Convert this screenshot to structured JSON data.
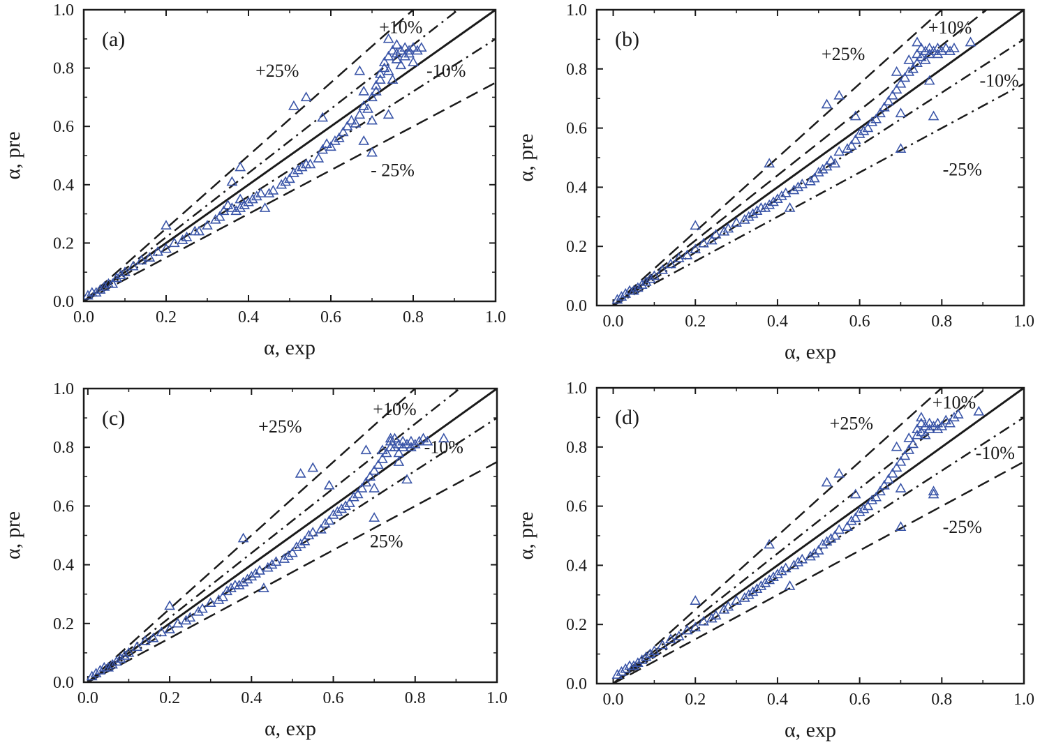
{
  "colors": {
    "axis": "#1a1a1a",
    "reference": "#1a1a1a",
    "marker": "#3a55a8",
    "background": "#ffffff"
  },
  "chart_data": [
    {
      "type": "scatter",
      "panel_label": "(a)",
      "xlabel": "α, exp",
      "ylabel": "α, pre",
      "xlim": [
        0,
        1
      ],
      "ylim": [
        0,
        1
      ],
      "xticks": [
        "0.0",
        "0.2",
        "0.4",
        "0.6",
        "0.8",
        "1.0"
      ],
      "yticks": [
        "0.0",
        "0.2",
        "0.4",
        "0.6",
        "0.8",
        "1.0"
      ],
      "marker": "triangle",
      "reference_lines": [
        {
          "label": "",
          "slope": 1.0,
          "style": "solid"
        },
        {
          "label": "+10%",
          "slope": 1.1,
          "style": "dashdot"
        },
        {
          "label": "-10%",
          "slope": 0.9,
          "style": "dashdot"
        },
        {
          "label": "+25%",
          "slope": 1.25,
          "style": "dashed"
        },
        {
          "label": "-  25%",
          "slope": 0.75,
          "style": "dashed"
        }
      ],
      "x": [
        0.01,
        0.02,
        0.03,
        0.04,
        0.05,
        0.06,
        0.07,
        0.08,
        0.09,
        0.1,
        0.12,
        0.14,
        0.16,
        0.18,
        0.2,
        0.22,
        0.24,
        0.25,
        0.27,
        0.28,
        0.3,
        0.32,
        0.33,
        0.34,
        0.35,
        0.36,
        0.37,
        0.38,
        0.38,
        0.39,
        0.4,
        0.41,
        0.42,
        0.43,
        0.44,
        0.45,
        0.46,
        0.48,
        0.49,
        0.5,
        0.51,
        0.52,
        0.53,
        0.54,
        0.55,
        0.57,
        0.58,
        0.59,
        0.6,
        0.61,
        0.62,
        0.63,
        0.64,
        0.65,
        0.66,
        0.67,
        0.68,
        0.68,
        0.69,
        0.7,
        0.7,
        0.71,
        0.71,
        0.72,
        0.72,
        0.73,
        0.73,
        0.74,
        0.74,
        0.75,
        0.75,
        0.76,
        0.76,
        0.77,
        0.77,
        0.78,
        0.78,
        0.79,
        0.79,
        0.8,
        0.8,
        0.81,
        0.82,
        0.2,
        0.38,
        0.51,
        0.54,
        0.58,
        0.67,
        0.74,
        0.76,
        0.36,
        0.7,
        0.68,
        0.74
      ],
      "y": [
        0.02,
        0.03,
        0.03,
        0.04,
        0.05,
        0.06,
        0.06,
        0.08,
        0.09,
        0.1,
        0.12,
        0.14,
        0.15,
        0.17,
        0.18,
        0.2,
        0.21,
        0.22,
        0.24,
        0.24,
        0.26,
        0.28,
        0.29,
        0.31,
        0.33,
        0.32,
        0.31,
        0.32,
        0.35,
        0.33,
        0.34,
        0.35,
        0.36,
        0.37,
        0.32,
        0.37,
        0.38,
        0.4,
        0.41,
        0.42,
        0.44,
        0.45,
        0.46,
        0.47,
        0.47,
        0.49,
        0.52,
        0.54,
        0.53,
        0.55,
        0.56,
        0.58,
        0.6,
        0.62,
        0.61,
        0.64,
        0.67,
        0.72,
        0.66,
        0.62,
        0.7,
        0.72,
        0.74,
        0.76,
        0.78,
        0.8,
        0.82,
        0.79,
        0.84,
        0.76,
        0.86,
        0.83,
        0.85,
        0.86,
        0.81,
        0.87,
        0.84,
        0.86,
        0.85,
        0.87,
        0.82,
        0.86,
        0.87,
        0.26,
        0.46,
        0.67,
        0.7,
        0.63,
        0.79,
        0.9,
        0.88,
        0.41,
        0.51,
        0.55,
        0.64
      ]
    },
    {
      "type": "scatter",
      "panel_label": "(b)",
      "xlabel": "α, exp",
      "ylabel": "α, pre",
      "xlim": [
        -0.04,
        1
      ],
      "ylim": [
        0,
        1
      ],
      "xticks": [
        "0.0",
        "0.2",
        "0.4",
        "0.6",
        "0.8",
        "1.0"
      ],
      "yticks": [
        "0.0",
        "0.2",
        "0.4",
        "0.6",
        "0.8",
        "1.0"
      ],
      "marker": "triangle",
      "reference_lines": [
        {
          "label": "",
          "slope": 1.0,
          "style": "solid"
        },
        {
          "label": "+10%",
          "slope": 1.1,
          "style": "dashed"
        },
        {
          "label": "-10%",
          "slope": 0.9,
          "style": "dashdot"
        },
        {
          "label": "+25%",
          "slope": 1.25,
          "style": "dashed"
        },
        {
          "label": "-25%",
          "slope": 0.75,
          "style": "dashdot"
        }
      ],
      "x": [
        0.01,
        0.02,
        0.03,
        0.04,
        0.05,
        0.06,
        0.07,
        0.08,
        0.09,
        0.1,
        0.12,
        0.14,
        0.16,
        0.18,
        0.2,
        0.22,
        0.24,
        0.25,
        0.27,
        0.28,
        0.3,
        0.32,
        0.33,
        0.34,
        0.35,
        0.36,
        0.37,
        0.38,
        0.39,
        0.4,
        0.41,
        0.42,
        0.43,
        0.44,
        0.45,
        0.46,
        0.48,
        0.49,
        0.5,
        0.51,
        0.52,
        0.53,
        0.54,
        0.55,
        0.57,
        0.58,
        0.59,
        0.6,
        0.61,
        0.62,
        0.63,
        0.64,
        0.65,
        0.66,
        0.67,
        0.68,
        0.69,
        0.7,
        0.71,
        0.72,
        0.72,
        0.73,
        0.74,
        0.74,
        0.75,
        0.75,
        0.76,
        0.76,
        0.77,
        0.77,
        0.78,
        0.79,
        0.79,
        0.8,
        0.81,
        0.82,
        0.83,
        0.87,
        0.2,
        0.38,
        0.52,
        0.55,
        0.59,
        0.69,
        0.74,
        0.77,
        0.7,
        0.7,
        0.78
      ],
      "y": [
        0.02,
        0.03,
        0.04,
        0.05,
        0.05,
        0.06,
        0.07,
        0.08,
        0.09,
        0.1,
        0.12,
        0.14,
        0.16,
        0.17,
        0.19,
        0.21,
        0.22,
        0.24,
        0.25,
        0.26,
        0.28,
        0.29,
        0.3,
        0.31,
        0.32,
        0.33,
        0.33,
        0.34,
        0.35,
        0.36,
        0.37,
        0.38,
        0.33,
        0.39,
        0.4,
        0.41,
        0.42,
        0.43,
        0.45,
        0.46,
        0.47,
        0.49,
        0.48,
        0.52,
        0.53,
        0.54,
        0.56,
        0.58,
        0.59,
        0.6,
        0.62,
        0.63,
        0.65,
        0.67,
        0.69,
        0.71,
        0.73,
        0.75,
        0.77,
        0.79,
        0.83,
        0.8,
        0.82,
        0.85,
        0.84,
        0.87,
        0.83,
        0.86,
        0.85,
        0.87,
        0.86,
        0.85,
        0.87,
        0.86,
        0.87,
        0.86,
        0.87,
        0.89,
        0.27,
        0.48,
        0.68,
        0.71,
        0.64,
        0.79,
        0.89,
        0.76,
        0.53,
        0.65,
        0.64
      ]
    },
    {
      "type": "scatter",
      "panel_label": "(c)",
      "xlabel": "α, exp",
      "ylabel": "α, pre",
      "xlim": [
        -0.01,
        1
      ],
      "ylim": [
        0,
        1
      ],
      "xticks": [
        "0.0",
        "0.2",
        "0.4",
        "0.6",
        "0.8",
        "1.0"
      ],
      "yticks": [
        "0.0",
        "0.2",
        "0.4",
        "0.6",
        "0.8",
        "1.0"
      ],
      "marker": "triangle",
      "reference_lines": [
        {
          "label": "",
          "slope": 1.0,
          "style": "solid"
        },
        {
          "label": "+10%",
          "slope": 1.1,
          "style": "dashdot"
        },
        {
          "label": "-10%",
          "slope": 0.9,
          "style": "dashdot"
        },
        {
          "label": "+25%",
          "slope": 1.25,
          "style": "dashed"
        },
        {
          "label": "25%",
          "slope": 0.75,
          "style": "dashed"
        }
      ],
      "x": [
        0.01,
        0.02,
        0.03,
        0.04,
        0.05,
        0.06,
        0.07,
        0.08,
        0.09,
        0.1,
        0.12,
        0.14,
        0.16,
        0.18,
        0.2,
        0.22,
        0.24,
        0.25,
        0.27,
        0.28,
        0.3,
        0.32,
        0.33,
        0.34,
        0.35,
        0.36,
        0.37,
        0.38,
        0.39,
        0.4,
        0.41,
        0.42,
        0.43,
        0.44,
        0.45,
        0.46,
        0.48,
        0.49,
        0.5,
        0.51,
        0.52,
        0.53,
        0.54,
        0.55,
        0.57,
        0.58,
        0.59,
        0.6,
        0.61,
        0.62,
        0.63,
        0.64,
        0.65,
        0.66,
        0.67,
        0.68,
        0.69,
        0.7,
        0.71,
        0.72,
        0.72,
        0.73,
        0.74,
        0.74,
        0.75,
        0.75,
        0.76,
        0.76,
        0.77,
        0.77,
        0.78,
        0.79,
        0.79,
        0.8,
        0.81,
        0.82,
        0.83,
        0.87,
        0.2,
        0.38,
        0.52,
        0.55,
        0.59,
        0.68,
        0.74,
        0.76,
        0.7,
        0.7,
        0.78
      ],
      "y": [
        0.02,
        0.03,
        0.04,
        0.05,
        0.05,
        0.06,
        0.07,
        0.08,
        0.09,
        0.1,
        0.12,
        0.14,
        0.15,
        0.17,
        0.18,
        0.2,
        0.21,
        0.22,
        0.24,
        0.25,
        0.27,
        0.28,
        0.29,
        0.31,
        0.32,
        0.33,
        0.33,
        0.34,
        0.35,
        0.36,
        0.37,
        0.38,
        0.32,
        0.39,
        0.4,
        0.41,
        0.42,
        0.43,
        0.44,
        0.46,
        0.47,
        0.48,
        0.5,
        0.51,
        0.52,
        0.54,
        0.55,
        0.57,
        0.58,
        0.59,
        0.6,
        0.61,
        0.63,
        0.64,
        0.66,
        0.68,
        0.7,
        0.72,
        0.74,
        0.76,
        0.79,
        0.78,
        0.8,
        0.82,
        0.8,
        0.83,
        0.78,
        0.81,
        0.8,
        0.82,
        0.81,
        0.8,
        0.82,
        0.81,
        0.82,
        0.83,
        0.82,
        0.83,
        0.26,
        0.49,
        0.71,
        0.73,
        0.67,
        0.79,
        0.83,
        0.75,
        0.56,
        0.66,
        0.69
      ]
    },
    {
      "type": "scatter",
      "panel_label": "(d)",
      "xlabel": "α, exp",
      "ylabel": "α, pre",
      "xlim": [
        -0.04,
        1
      ],
      "ylim": [
        0,
        1
      ],
      "xticks": [
        "0.0",
        "0.2",
        "0.4",
        "0.6",
        "0.8",
        "1.0"
      ],
      "yticks": [
        "0.0",
        "0.2",
        "0.4",
        "0.6",
        "0.8",
        "1.0"
      ],
      "marker": "triangle",
      "reference_lines": [
        {
          "label": "",
          "slope": 1.0,
          "style": "solid"
        },
        {
          "label": "+10%",
          "slope": 1.1,
          "style": "dashdot"
        },
        {
          "label": "-10%",
          "slope": 0.9,
          "style": "dashdot"
        },
        {
          "label": "+25%",
          "slope": 1.25,
          "style": "dashed"
        },
        {
          "label": "-25%",
          "slope": 0.75,
          "style": "dashed"
        }
      ],
      "x": [
        0.01,
        0.02,
        0.03,
        0.04,
        0.05,
        0.06,
        0.07,
        0.08,
        0.09,
        0.1,
        0.12,
        0.14,
        0.16,
        0.18,
        0.2,
        0.22,
        0.24,
        0.25,
        0.27,
        0.28,
        0.3,
        0.32,
        0.33,
        0.34,
        0.35,
        0.36,
        0.37,
        0.38,
        0.39,
        0.4,
        0.41,
        0.42,
        0.43,
        0.44,
        0.45,
        0.46,
        0.48,
        0.49,
        0.5,
        0.51,
        0.52,
        0.53,
        0.54,
        0.55,
        0.57,
        0.58,
        0.59,
        0.6,
        0.61,
        0.62,
        0.63,
        0.64,
        0.65,
        0.66,
        0.67,
        0.68,
        0.69,
        0.7,
        0.71,
        0.72,
        0.72,
        0.73,
        0.74,
        0.74,
        0.75,
        0.75,
        0.76,
        0.76,
        0.77,
        0.77,
        0.78,
        0.79,
        0.79,
        0.8,
        0.81,
        0.82,
        0.83,
        0.84,
        0.89,
        0.2,
        0.38,
        0.52,
        0.55,
        0.59,
        0.69,
        0.75,
        0.78,
        0.7,
        0.7,
        0.78
      ],
      "y": [
        0.03,
        0.04,
        0.05,
        0.06,
        0.06,
        0.07,
        0.08,
        0.09,
        0.1,
        0.11,
        0.13,
        0.15,
        0.16,
        0.18,
        0.19,
        0.21,
        0.22,
        0.23,
        0.25,
        0.26,
        0.28,
        0.29,
        0.3,
        0.31,
        0.32,
        0.33,
        0.34,
        0.35,
        0.36,
        0.37,
        0.38,
        0.39,
        0.33,
        0.4,
        0.41,
        0.42,
        0.43,
        0.44,
        0.45,
        0.47,
        0.48,
        0.49,
        0.5,
        0.52,
        0.53,
        0.55,
        0.56,
        0.58,
        0.59,
        0.6,
        0.62,
        0.63,
        0.65,
        0.67,
        0.69,
        0.71,
        0.73,
        0.75,
        0.77,
        0.79,
        0.83,
        0.81,
        0.84,
        0.86,
        0.85,
        0.88,
        0.84,
        0.87,
        0.86,
        0.88,
        0.87,
        0.86,
        0.88,
        0.87,
        0.89,
        0.88,
        0.9,
        0.91,
        0.92,
        0.28,
        0.47,
        0.68,
        0.71,
        0.64,
        0.8,
        0.9,
        0.64,
        0.53,
        0.66,
        0.65
      ]
    }
  ]
}
